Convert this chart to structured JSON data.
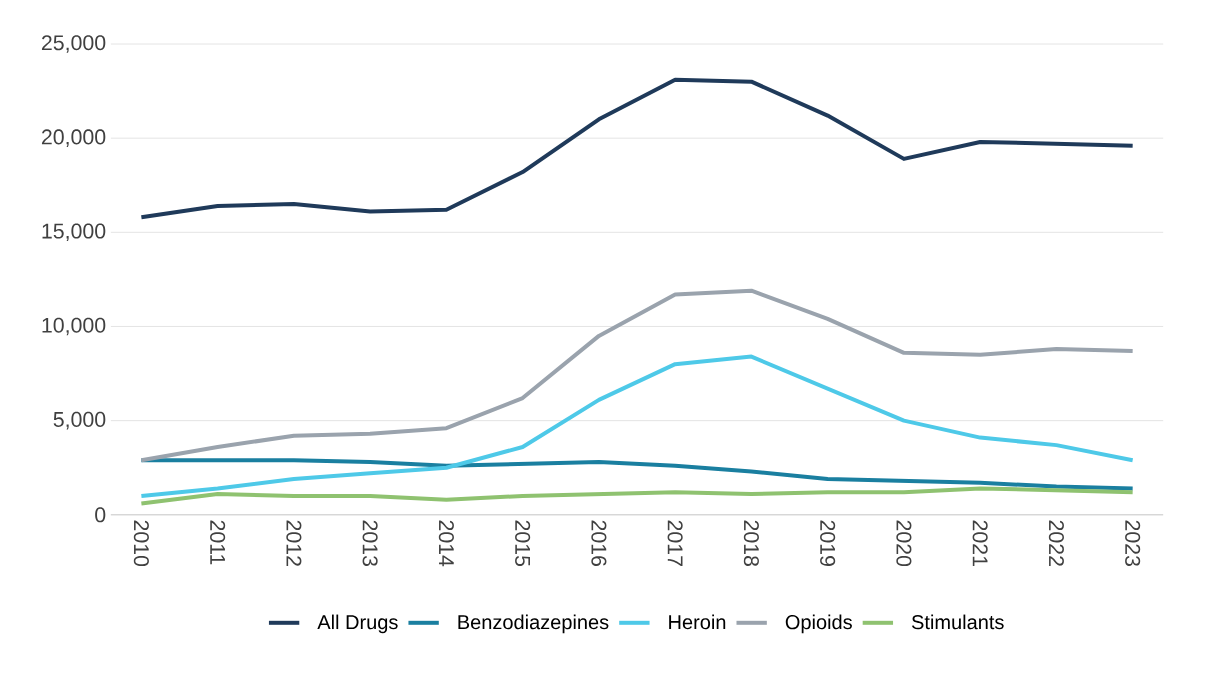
{
  "chart_data": {
    "type": "line",
    "categories": [
      "2010",
      "2011",
      "2012",
      "2013",
      "2014",
      "2015",
      "2016",
      "2017",
      "2018",
      "2019",
      "2020",
      "2021",
      "2022",
      "2023"
    ],
    "series": [
      {
        "name": "All Drugs",
        "color": "#1f3a5a",
        "values": [
          15800,
          16400,
          16500,
          16100,
          16200,
          18200,
          21000,
          23100,
          23000,
          21200,
          18900,
          19800,
          19700,
          19600
        ]
      },
      {
        "name": "Benzodiazepines",
        "color": "#1a7fa0",
        "values": [
          2900,
          2900,
          2900,
          2800,
          2600,
          2700,
          2800,
          2600,
          2300,
          1900,
          1800,
          1700,
          1500,
          1400
        ]
      },
      {
        "name": "Heroin",
        "color": "#4ec9e8",
        "values": [
          1000,
          1400,
          1900,
          2200,
          2500,
          3600,
          6100,
          8000,
          8400,
          6700,
          5000,
          4100,
          3700,
          2900
        ]
      },
      {
        "name": "Opioids",
        "color": "#9aa3ad",
        "values": [
          2900,
          3600,
          4200,
          4300,
          4600,
          6200,
          9500,
          11700,
          11900,
          10400,
          8600,
          8500,
          8800,
          8700
        ]
      },
      {
        "name": "Stimulants",
        "color": "#8fc270",
        "values": [
          600,
          1100,
          1000,
          1000,
          800,
          1000,
          1100,
          1200,
          1100,
          1200,
          1200,
          1400,
          1300,
          1200
        ]
      }
    ],
    "ylim": [
      0,
      25000
    ],
    "yticks": [
      {
        "value": 0,
        "label": "0"
      },
      {
        "value": 5000,
        "label": "5,000"
      },
      {
        "value": 10000,
        "label": "10,000"
      },
      {
        "value": 15000,
        "label": "15,000"
      },
      {
        "value": 20000,
        "label": "20,000"
      },
      {
        "value": 25000,
        "label": "25,000"
      }
    ],
    "grid": "y",
    "legend": "bottom",
    "marker": "none",
    "line_style": "solid"
  }
}
